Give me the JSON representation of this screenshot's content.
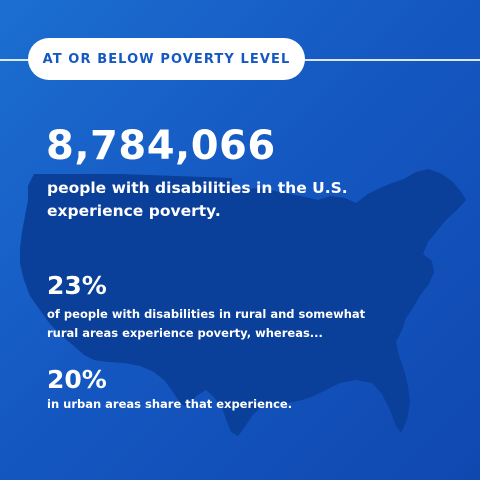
{
  "header": {
    "badge_label": "AT OR BELOW POVERTY LEVEL"
  },
  "headline": {
    "number": "8,784,066",
    "line1": "people with disabilities in the U.S.",
    "line2": "experience poverty."
  },
  "stat_rural": {
    "percent": "23%",
    "line1": "of people with disabilities in rural and somewhat",
    "line2": "rural areas experience poverty, whereas..."
  },
  "stat_urban": {
    "percent": "20%",
    "line1": "in urban areas share that experience."
  },
  "colors": {
    "background": "#1558c2",
    "map": "#0a3f9a",
    "text": "#ffffff"
  }
}
